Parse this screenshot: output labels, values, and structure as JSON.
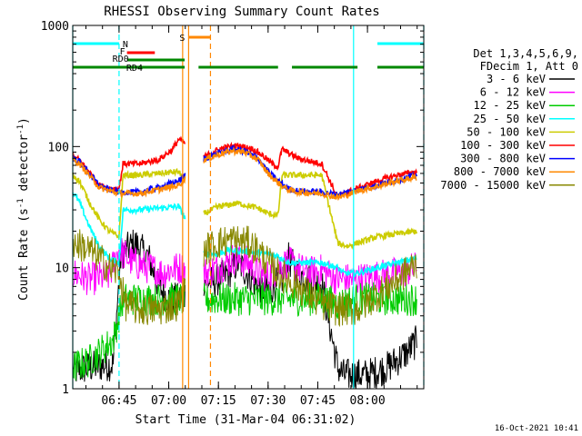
{
  "chart_data": {
    "type": "line",
    "title": "RHESSI Observing Summary Count Rates",
    "xlabel": "Start Time (31-Mar-04 06:31:02)",
    "ylabel": "Count Rate (s",
    "ylabel_sup": "-1",
    "ylabel_tail": " detector",
    "ylabel_end": ")",
    "footer": "16-Oct-2021 10:41",
    "xlim": [
      6.517,
      8.2833
    ],
    "ylim": [
      1,
      1000
    ],
    "yscale": "log",
    "xticks": [
      {
        "x": 6.75,
        "label": "06:45"
      },
      {
        "x": 7.0,
        "label": "07:00"
      },
      {
        "x": 7.25,
        "label": "07:15"
      },
      {
        "x": 7.5,
        "label": "07:30"
      },
      {
        "x": 7.75,
        "label": "07:45"
      },
      {
        "x": 8.0,
        "label": "08:00"
      }
    ],
    "yticks": [
      {
        "y": 1,
        "label": "1"
      },
      {
        "y": 10,
        "label": "10"
      },
      {
        "y": 100,
        "label": "100"
      },
      {
        "y": 1000,
        "label": "1000"
      }
    ],
    "legend": {
      "position": "right",
      "header": [
        "Det 1,3,4,5,6,9,",
        "FDecim 1, Att 0"
      ]
    },
    "series": [
      {
        "name": "3 - 6 keV",
        "color": "#000000",
        "values": [
          [
            6.517,
            1.4
          ],
          [
            6.6,
            1.5
          ],
          [
            6.72,
            1.6
          ],
          [
            6.76,
            13
          ],
          [
            6.83,
            16
          ],
          [
            6.9,
            12
          ],
          [
            6.95,
            7
          ],
          [
            7.0,
            5.5
          ],
          [
            7.05,
            5.5
          ],
          [
            7.18,
            8
          ],
          [
            7.22,
            7.5
          ],
          [
            7.3,
            9
          ],
          [
            7.35,
            11
          ],
          [
            7.45,
            7
          ],
          [
            7.5,
            6.5
          ],
          [
            7.57,
            8
          ],
          [
            7.6,
            12
          ],
          [
            7.65,
            9
          ],
          [
            7.7,
            8
          ],
          [
            7.77,
            7.5
          ],
          [
            7.85,
            1.5
          ],
          [
            7.88,
            1.3
          ],
          [
            8.0,
            1.3
          ],
          [
            8.1,
            1.5
          ],
          [
            8.2,
            2
          ],
          [
            8.25,
            2.5
          ]
        ]
      },
      {
        "name": "6 - 12 keV",
        "color": "#ff00ff",
        "values": [
          [
            6.517,
            9
          ],
          [
            6.6,
            8
          ],
          [
            6.7,
            8.5
          ],
          [
            6.75,
            14
          ],
          [
            6.82,
            11
          ],
          [
            6.9,
            10
          ],
          [
            6.97,
            9
          ],
          [
            7.0,
            9.5
          ],
          [
            7.05,
            10
          ],
          [
            7.18,
            9
          ],
          [
            7.25,
            10
          ],
          [
            7.33,
            12
          ],
          [
            7.4,
            11
          ],
          [
            7.45,
            9
          ],
          [
            7.5,
            8.5
          ],
          [
            7.55,
            10
          ],
          [
            7.6,
            11
          ],
          [
            7.65,
            10
          ],
          [
            7.7,
            9
          ],
          [
            7.77,
            9.5
          ],
          [
            7.85,
            8
          ],
          [
            7.95,
            8
          ],
          [
            8.05,
            8.5
          ],
          [
            8.15,
            9
          ],
          [
            8.25,
            10
          ]
        ]
      },
      {
        "name": "12 - 25 keV",
        "color": "#00cc00",
        "values": [
          [
            6.517,
            1.5
          ],
          [
            6.6,
            1.7
          ],
          [
            6.72,
            2.5
          ],
          [
            6.77,
            5.5
          ],
          [
            6.85,
            5.5
          ],
          [
            6.95,
            5.5
          ],
          [
            7.05,
            5.5
          ],
          [
            7.18,
            5.5
          ],
          [
            7.25,
            5.5
          ],
          [
            7.35,
            5.5
          ],
          [
            7.45,
            5.5
          ],
          [
            7.55,
            5.5
          ],
          [
            7.65,
            5.5
          ],
          [
            7.77,
            5.5
          ],
          [
            7.85,
            5
          ],
          [
            7.95,
            5.5
          ],
          [
            8.05,
            5.5
          ],
          [
            8.15,
            5.5
          ],
          [
            8.25,
            5.5
          ]
        ]
      },
      {
        "name": "25 - 50 keV",
        "color": "#00ffff",
        "values": [
          [
            6.517,
            42
          ],
          [
            6.55,
            35
          ],
          [
            6.6,
            22
          ],
          [
            6.65,
            15
          ],
          [
            6.7,
            12
          ],
          [
            6.75,
            11
          ],
          [
            6.77,
            30
          ],
          [
            6.85,
            30
          ],
          [
            6.95,
            31
          ],
          [
            7.05,
            32
          ],
          [
            7.18,
            13
          ],
          [
            7.25,
            13
          ],
          [
            7.3,
            14
          ],
          [
            7.4,
            13.5
          ],
          [
            7.5,
            13
          ],
          [
            7.55,
            12.5
          ],
          [
            7.6,
            11
          ],
          [
            7.7,
            11
          ],
          [
            7.77,
            11
          ],
          [
            7.85,
            10
          ],
          [
            7.88,
            9
          ],
          [
            7.95,
            9
          ],
          [
            8.05,
            10
          ],
          [
            8.15,
            11
          ],
          [
            8.25,
            12
          ]
        ]
      },
      {
        "name": "50 - 100 keV",
        "color": "#cccc00",
        "values": [
          [
            6.517,
            58
          ],
          [
            6.55,
            52
          ],
          [
            6.6,
            35
          ],
          [
            6.65,
            25
          ],
          [
            6.7,
            20
          ],
          [
            6.75,
            18
          ],
          [
            6.77,
            58
          ],
          [
            6.85,
            58
          ],
          [
            6.95,
            60
          ],
          [
            7.05,
            62
          ],
          [
            7.18,
            28
          ],
          [
            7.25,
            32
          ],
          [
            7.35,
            34
          ],
          [
            7.45,
            31
          ],
          [
            7.5,
            28
          ],
          [
            7.55,
            27
          ],
          [
            7.57,
            58
          ],
          [
            7.7,
            58
          ],
          [
            7.77,
            58
          ],
          [
            7.85,
            16
          ],
          [
            7.9,
            15
          ],
          [
            7.95,
            16
          ],
          [
            8.05,
            18
          ],
          [
            8.15,
            19
          ],
          [
            8.25,
            20
          ]
        ]
      },
      {
        "name": "100 - 300 keV",
        "color": "#ff0000",
        "values": [
          [
            6.517,
            82
          ],
          [
            6.55,
            78
          ],
          [
            6.6,
            62
          ],
          [
            6.65,
            48
          ],
          [
            6.7,
            45
          ],
          [
            6.75,
            45
          ],
          [
            6.77,
            72
          ],
          [
            6.85,
            72
          ],
          [
            6.95,
            78
          ],
          [
            7.02,
            95
          ],
          [
            7.05,
            115
          ],
          [
            7.18,
            82
          ],
          [
            7.22,
            90
          ],
          [
            7.28,
            98
          ],
          [
            7.35,
            102
          ],
          [
            7.42,
            96
          ],
          [
            7.47,
            85
          ],
          [
            7.52,
            72
          ],
          [
            7.55,
            68
          ],
          [
            7.57,
            95
          ],
          [
            7.65,
            80
          ],
          [
            7.72,
            75
          ],
          [
            7.77,
            72
          ],
          [
            7.85,
            38
          ],
          [
            7.9,
            42
          ],
          [
            7.95,
            45
          ],
          [
            8.05,
            52
          ],
          [
            8.15,
            58
          ],
          [
            8.25,
            62
          ]
        ]
      },
      {
        "name": "300 - 800 keV",
        "color": "#0000ff",
        "values": [
          [
            6.517,
            80
          ],
          [
            6.55,
            75
          ],
          [
            6.6,
            60
          ],
          [
            6.65,
            48
          ],
          [
            6.7,
            44
          ],
          [
            6.75,
            42
          ],
          [
            6.85,
            42
          ],
          [
            6.95,
            46
          ],
          [
            7.05,
            52
          ],
          [
            7.18,
            80
          ],
          [
            7.25,
            88
          ],
          [
            7.32,
            95
          ],
          [
            7.38,
            92
          ],
          [
            7.45,
            80
          ],
          [
            7.5,
            62
          ],
          [
            7.55,
            52
          ],
          [
            7.6,
            45
          ],
          [
            7.65,
            43
          ],
          [
            7.77,
            42
          ],
          [
            7.85,
            40
          ],
          [
            7.9,
            42
          ],
          [
            7.95,
            44
          ],
          [
            8.05,
            48
          ],
          [
            8.15,
            53
          ],
          [
            8.25,
            58
          ]
        ]
      },
      {
        "name": "800 - 7000 keV",
        "color": "#ff8800",
        "values": [
          [
            6.517,
            78
          ],
          [
            6.55,
            72
          ],
          [
            6.6,
            58
          ],
          [
            6.65,
            46
          ],
          [
            6.7,
            43
          ],
          [
            6.75,
            41
          ],
          [
            6.85,
            41
          ],
          [
            6.95,
            44
          ],
          [
            7.05,
            48
          ],
          [
            7.18,
            78
          ],
          [
            7.25,
            86
          ],
          [
            7.32,
            92
          ],
          [
            7.38,
            90
          ],
          [
            7.45,
            78
          ],
          [
            7.5,
            60
          ],
          [
            7.55,
            50
          ],
          [
            7.6,
            44
          ],
          [
            7.65,
            42
          ],
          [
            7.77,
            41
          ],
          [
            7.85,
            38
          ],
          [
            7.9,
            40
          ],
          [
            7.95,
            43
          ],
          [
            8.05,
            47
          ],
          [
            8.15,
            52
          ],
          [
            8.25,
            56
          ]
        ]
      },
      {
        "name": "7000 - 15000 keV",
        "color": "#888800",
        "values": [
          [
            6.517,
            16
          ],
          [
            6.55,
            15.5
          ],
          [
            6.6,
            14
          ],
          [
            6.65,
            12
          ],
          [
            6.7,
            10
          ],
          [
            6.75,
            9
          ],
          [
            6.78,
            5
          ],
          [
            6.85,
            4.5
          ],
          [
            6.95,
            4.5
          ],
          [
            7.05,
            5
          ],
          [
            7.18,
            14
          ],
          [
            7.25,
            16
          ],
          [
            7.32,
            17
          ],
          [
            7.4,
            16
          ],
          [
            7.45,
            14
          ],
          [
            7.5,
            11
          ],
          [
            7.55,
            9
          ],
          [
            7.6,
            8
          ],
          [
            7.65,
            7
          ],
          [
            7.77,
            5
          ],
          [
            7.85,
            4.5
          ],
          [
            7.95,
            4.5
          ],
          [
            8.05,
            6
          ],
          [
            8.15,
            8
          ],
          [
            8.25,
            11
          ]
        ]
      }
    ],
    "bars": [
      {
        "label": "N",
        "color": "#00ffff",
        "segments": [
          [
            6.517,
            6.75
          ],
          [
            8.05,
            8.2833
          ]
        ]
      },
      {
        "label": "F",
        "color": "#ff0000",
        "segments": [
          [
            6.79,
            6.93
          ]
        ]
      },
      {
        "label": "RD0",
        "color": "#008800",
        "segments": [
          [
            6.79,
            7.08
          ]
        ]
      },
      {
        "label": "RD4",
        "color": "#008800",
        "segments": [
          [
            6.517,
            7.08
          ],
          [
            7.15,
            7.55
          ],
          [
            7.62,
            7.95
          ],
          [
            8.05,
            8.2833
          ]
        ]
      },
      {
        "label": "S",
        "color": "#ff8800",
        "segments": [
          [
            7.1,
            7.21
          ]
        ]
      }
    ],
    "vlines": [
      {
        "x": 6.517,
        "color": "#00ffff",
        "style": "solid"
      },
      {
        "x": 6.75,
        "color": "#00ffff",
        "style": "dashed"
      },
      {
        "x": 7.93,
        "color": "#00ffff",
        "style": "solid"
      },
      {
        "x": 8.2833,
        "color": "#00ffff",
        "style": "dashed"
      },
      {
        "x": 7.1,
        "color": "#ff8800",
        "style": "solid"
      },
      {
        "x": 7.21,
        "color": "#ff8800",
        "style": "dashed"
      },
      {
        "x": 7.07,
        "color": "#ff8800",
        "style": "solid"
      }
    ]
  }
}
